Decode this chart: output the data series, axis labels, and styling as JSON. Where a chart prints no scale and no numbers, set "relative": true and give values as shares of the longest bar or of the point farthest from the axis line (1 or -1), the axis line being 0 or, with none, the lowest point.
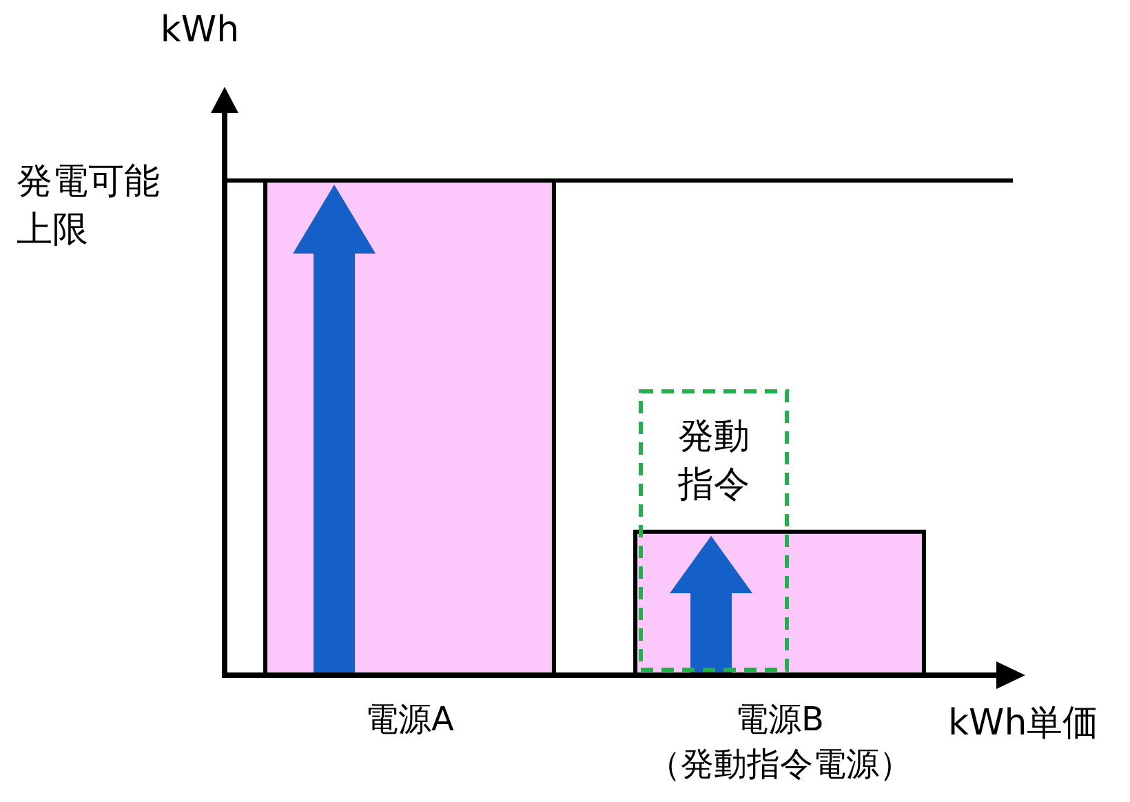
{
  "chart_data": {
    "type": "bar",
    "relative": true,
    "categories": [
      "電源A",
      "電源B（発動指令電源）"
    ],
    "values": [
      1,
      0.29
    ],
    "color": "#fcc8fc",
    "xlabel": "kWh単価",
    "ylabel": "kWh",
    "ref_lines": [
      {
        "axis": "y",
        "value": 1,
        "label": "発電可能上限",
        "color": "#000000"
      }
    ],
    "annotations": [
      "発動指令"
    ]
  }
}
